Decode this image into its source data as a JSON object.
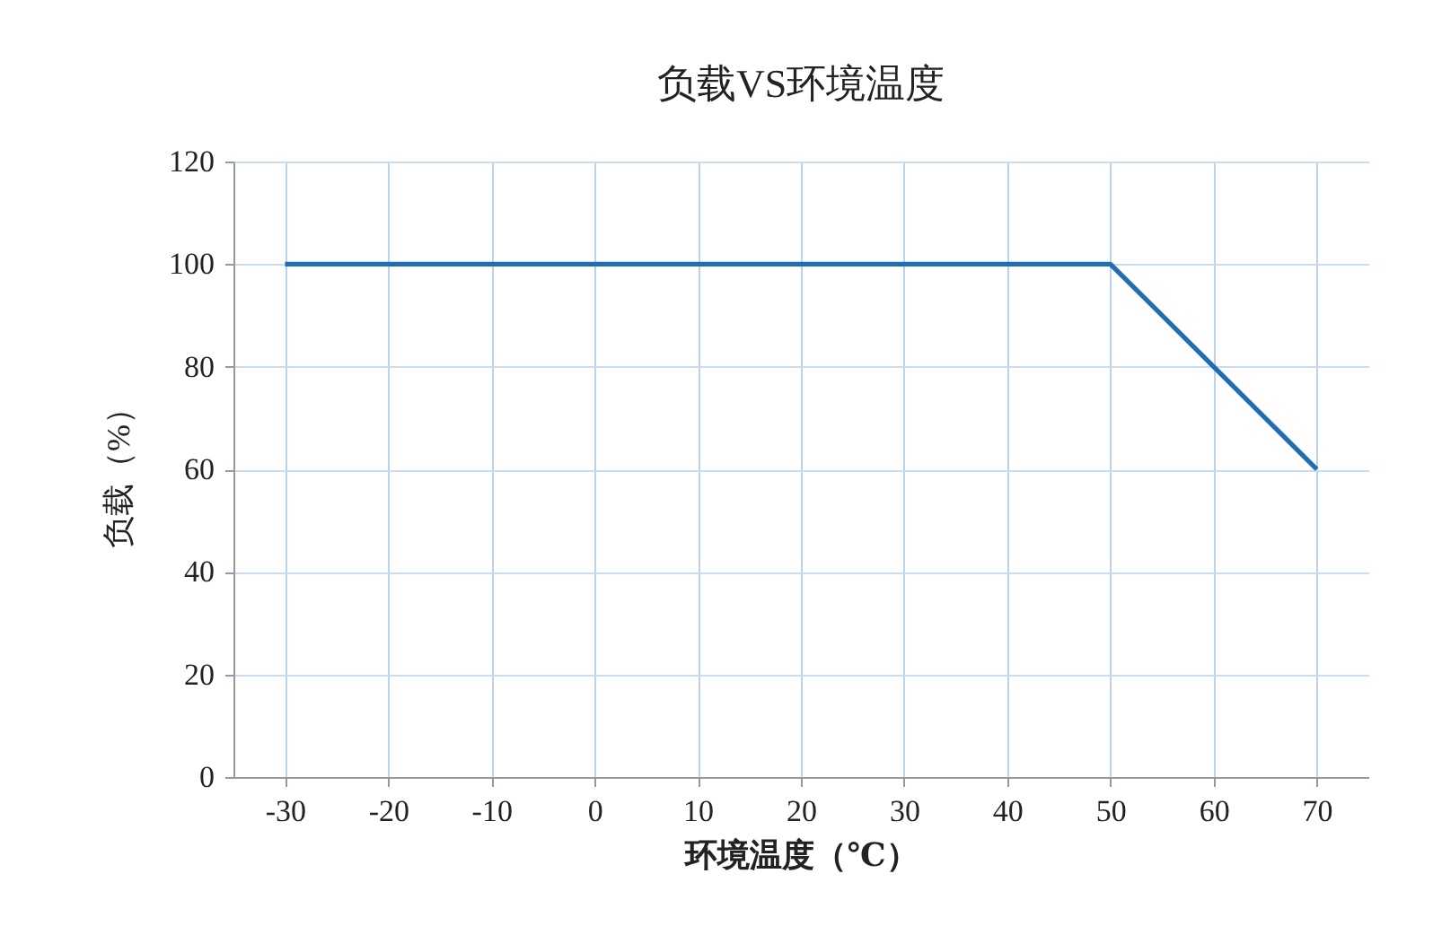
{
  "chart_data": {
    "type": "line",
    "title": "负载VS环境温度",
    "xlabel": "环境温度（℃）",
    "ylabel": "负载（%）",
    "categories": [
      "-30",
      "-20",
      "-10",
      "0",
      "10",
      "20",
      "30",
      "40",
      "50",
      "60",
      "70"
    ],
    "series": [
      {
        "color": "#1f6db4",
        "values": [
          100,
          100,
          100,
          100,
          100,
          100,
          100,
          100,
          100,
          80,
          60
        ]
      }
    ],
    "ylim": [
      0,
      120
    ],
    "yticks": [
      0,
      20,
      40,
      60,
      80,
      100,
      120
    ],
    "grid": true,
    "marker": "none",
    "line_style": "solid"
  }
}
